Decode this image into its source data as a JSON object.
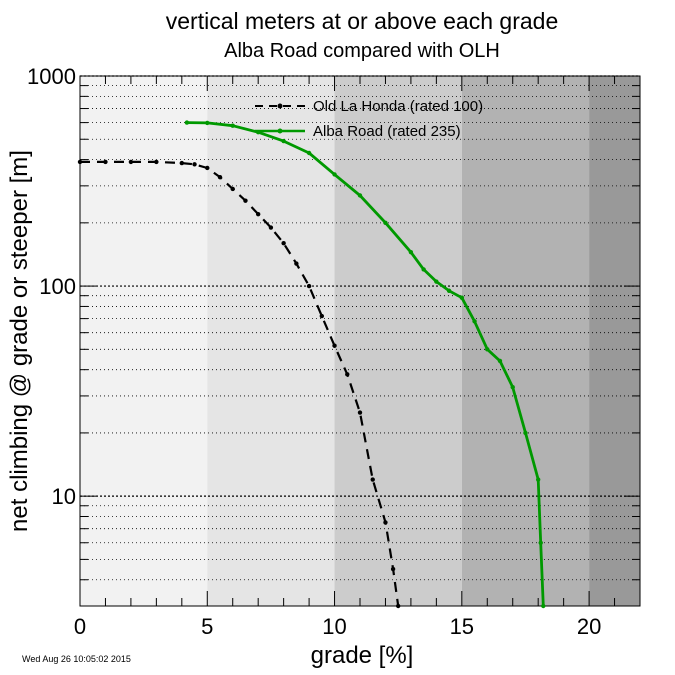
{
  "timestamp": "Wed Aug 26 10:05:02 2015",
  "chart_data": {
    "type": "line",
    "title": "vertical meters at or above each grade",
    "subtitle": "Alba Road compared with OLH",
    "xlabel": "grade [%]",
    "ylabel": "net climbing @ grade or steeper [m]",
    "xlim": [
      0,
      22
    ],
    "ylim": [
      3,
      1000
    ],
    "yscale": "log",
    "x_ticks": [
      0,
      5,
      10,
      15,
      20
    ],
    "y_ticks": [
      10,
      100,
      1000
    ],
    "grid": "horizontal dotted at each log decade subdivision",
    "legend_position": "top-center",
    "background_bands": [
      {
        "from": 0,
        "to": 5,
        "color": "#f2f2f2"
      },
      {
        "from": 5,
        "to": 10,
        "color": "#e5e5e5"
      },
      {
        "from": 10,
        "to": 15,
        "color": "#cccccc"
      },
      {
        "from": 15,
        "to": 20,
        "color": "#b2b2b2"
      },
      {
        "from": 20,
        "to": 22,
        "color": "#999999"
      }
    ],
    "series": [
      {
        "name": "Old La Honda (rated 100)",
        "color": "#000000",
        "style": "dashed",
        "x": [
          0,
          1,
          2,
          3,
          4,
          4.5,
          5,
          5.5,
          6,
          6.5,
          7,
          7.5,
          8,
          8.5,
          9,
          9.5,
          10,
          10.5,
          11,
          11.5,
          12,
          12.3,
          12.5
        ],
        "y": [
          390,
          390,
          390,
          390,
          385,
          380,
          365,
          330,
          290,
          255,
          220,
          190,
          160,
          128,
          100,
          72,
          52,
          38,
          25,
          12,
          7.5,
          4.5,
          3
        ]
      },
      {
        "name": "Alba Road (rated 235)",
        "color": "#009900",
        "style": "solid",
        "x": [
          4.2,
          5,
          6,
          7,
          8,
          9,
          10,
          11,
          12,
          13,
          13.5,
          14,
          14.5,
          15,
          15.5,
          16,
          16.5,
          17,
          17.5,
          18,
          18.1,
          18.2
        ],
        "y": [
          600,
          598,
          580,
          540,
          490,
          430,
          340,
          270,
          200,
          145,
          120,
          105,
          95,
          88,
          68,
          50,
          44,
          33,
          20,
          12,
          6,
          3
        ]
      }
    ]
  }
}
